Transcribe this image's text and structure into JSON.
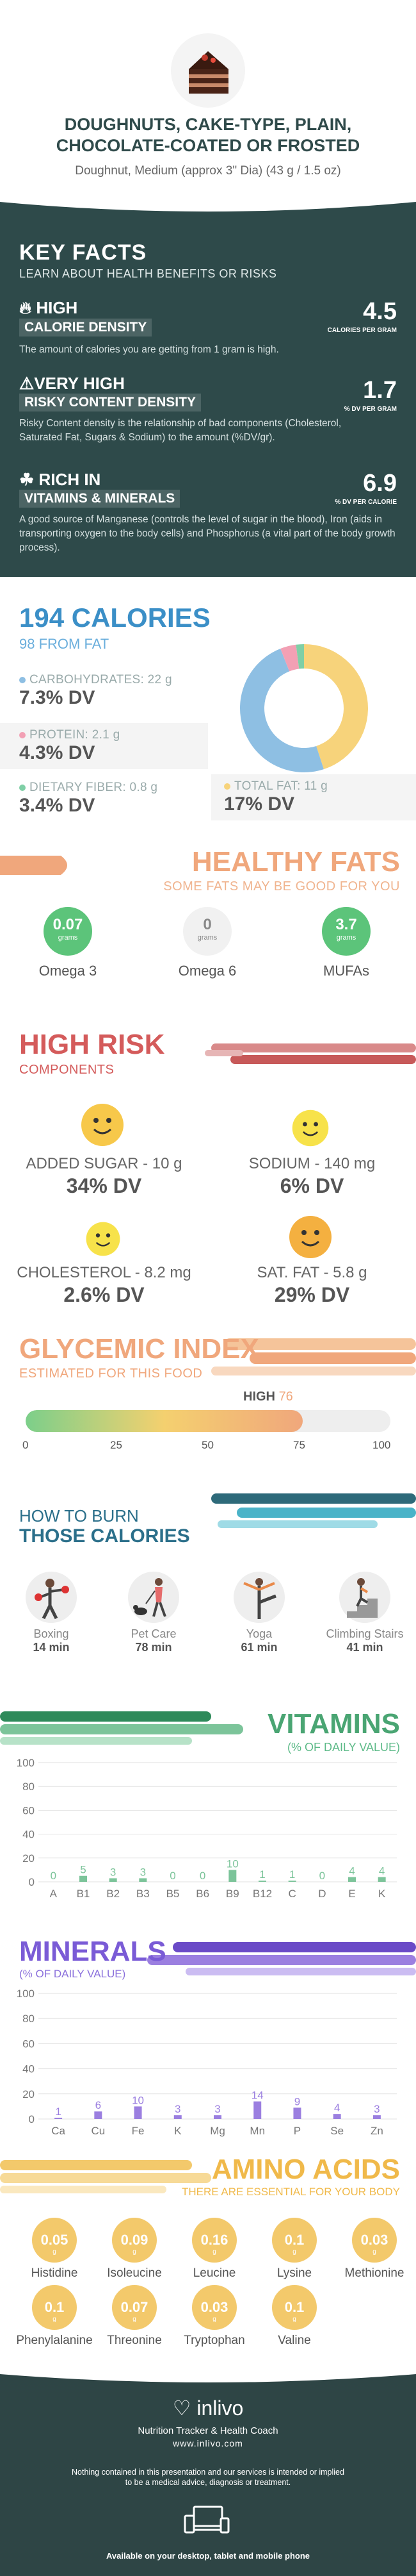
{
  "header": {
    "title": "DOUGHNUTS, CAKE-TYPE, PLAIN, CHOCOLATE-COATED OR FROSTED",
    "serving": "Doughnut, Medium (approx 3\" Dia) (43 g / 1.5 oz)"
  },
  "key_facts": {
    "heading": "KEY FACTS",
    "subheading": "LEARN ABOUT HEALTH BENEFITS OR RISKS",
    "items": [
      {
        "icon": "flame-icon",
        "tag": "HIGH",
        "label": "CALORIE DENSITY",
        "value": "4.5",
        "unit": "CALORIES PER GRAM",
        "text": "The amount of calories you are getting from 1 gram is high."
      },
      {
        "icon": "warning-icon",
        "tag": "VERY HIGH",
        "label": "RISKY CONTENT DENSITY",
        "value": "1.7",
        "unit": "% DV PER GRAM",
        "text": "Risky Content density is the relationship of bad components (Cholesterol, Saturated Fat, Sugars & Sodium) to the amount (%DV/gr)."
      },
      {
        "icon": "leaf-icon",
        "tag": "RICH  IN",
        "label": "VITAMINS & MINERALS",
        "value": "6.9",
        "unit": "% DV PER CALORIE",
        "text": "A good source of Manganese (controls the level of sugar in the blood), Iron (aids in transporting oxygen to the body cells) and Phosphorus (a vital part of the body growth process)."
      }
    ]
  },
  "calories": {
    "title": "194 CALORIES",
    "from_fat": "98 FROM FAT",
    "carbs_label": "CARBOHYDRATES: 22 g",
    "carbs_dv": "7.3% DV",
    "protein_label": "PROTEIN: 2.1 g",
    "protein_dv": "4.3% DV",
    "fiber_label": "DIETARY FIBER: 0.8 g",
    "fiber_dv": "3.4% DV",
    "fat_label": "TOTAL FAT: 11 g",
    "fat_dv": "17% DV",
    "colors": {
      "carbs": "#8ebfe3",
      "protein": "#f2a0b4",
      "fiber": "#7fcfa6",
      "fat": "#f7d37b"
    },
    "donut_shares": {
      "carbs": 0.49,
      "protein": 0.04,
      "fiber": 0.02,
      "fat": 0.45
    }
  },
  "healthy_fats": {
    "title": "HEALTHY FATS",
    "subtitle": "SOME FATS MAY BE GOOD FOR YOU",
    "unit": "grams",
    "items": [
      {
        "name": "Omega 3",
        "value": "0.07"
      },
      {
        "name": "Omega 6",
        "value": "0"
      },
      {
        "name": "MUFAs",
        "value": "3.7"
      }
    ]
  },
  "high_risk": {
    "title": "HIGH RISK",
    "subtitle": "COMPONENTS",
    "items": [
      {
        "label": "ADDED SUGAR - 10 g",
        "dv": "34% DV"
      },
      {
        "label": "SODIUM - 140 mg",
        "dv": "6% DV"
      },
      {
        "label": "CHOLESTEROL - 8.2 mg",
        "dv": "2.6% DV"
      },
      {
        "label": "SAT. FAT - 5.8 g",
        "dv": "29% DV"
      }
    ]
  },
  "glycemic": {
    "title": "GLYCEMIC INDEX",
    "subtitle": "ESTIMATED FOR THIS FOOD",
    "level": "HIGH",
    "value": "76",
    "value_num": 76,
    "ticks": [
      "0",
      "25",
      "50",
      "75",
      "100"
    ]
  },
  "burn": {
    "title1": "HOW TO BURN",
    "title2": "THOSE CALORIES",
    "items": [
      {
        "name": "Boxing",
        "time": "14 min"
      },
      {
        "name": "Pet Care",
        "time": "78 min"
      },
      {
        "name": "Yoga",
        "time": "61 min"
      },
      {
        "name": "Climbing Stairs",
        "time": "41 min"
      }
    ]
  },
  "vitamins": {
    "title": "VITAMINS",
    "subtitle": "(% OF DAILY VALUE)",
    "color": "#7cc49a",
    "chart_data": {
      "type": "bar",
      "categories": [
        "A",
        "B1",
        "B2",
        "B3",
        "B5",
        "B6",
        "B9",
        "B12",
        "C",
        "D",
        "E",
        "K"
      ],
      "values": [
        0,
        5,
        3,
        3,
        0,
        0,
        10,
        1,
        1,
        0,
        4,
        4
      ],
      "ylim": [
        0,
        100
      ],
      "yticks": [
        "0",
        "20",
        "40",
        "60",
        "80",
        "100"
      ]
    }
  },
  "minerals": {
    "title": "MINERALS",
    "subtitle": "(% OF DAILY VALUE)",
    "color": "#9b7fe0",
    "chart_data": {
      "type": "bar",
      "categories": [
        "Ca",
        "Cu",
        "Fe",
        "K",
        "Mg",
        "Mn",
        "P",
        "Se",
        "Zn"
      ],
      "values": [
        1,
        6,
        10,
        3,
        3,
        14,
        9,
        4,
        3
      ],
      "ylim": [
        0,
        100
      ],
      "yticks": [
        "0",
        "20",
        "40",
        "60",
        "80",
        "100"
      ]
    }
  },
  "amino": {
    "title": "AMINO ACIDS",
    "subtitle": "THERE ARE ESSENTIAL FOR YOUR BODY",
    "unit": "g",
    "items": [
      {
        "name": "Histidine",
        "value": "0.05"
      },
      {
        "name": "Isoleucine",
        "value": "0.09"
      },
      {
        "name": "Leucine",
        "value": "0.16"
      },
      {
        "name": "Lysine",
        "value": "0.1"
      },
      {
        "name": "Methionine",
        "value": "0.03"
      },
      {
        "name": "Phenylalanine",
        "value": "0.1"
      },
      {
        "name": "Threonine",
        "value": "0.07"
      },
      {
        "name": "Tryptophan",
        "value": "0.03"
      },
      {
        "name": "Valine",
        "value": "0.1"
      }
    ]
  },
  "footer": {
    "brand": "inlivo",
    "tagline": "Nutrition Tracker & Health Coach",
    "url": "www.inlivo.com",
    "disclaimer1": "Nothing contained in this presentation and our services is intended or implied",
    "disclaimer2": "to be a medical advice, diagnosis or treatment.",
    "platforms": "Available on your desktop, tablet and mobile phone"
  }
}
